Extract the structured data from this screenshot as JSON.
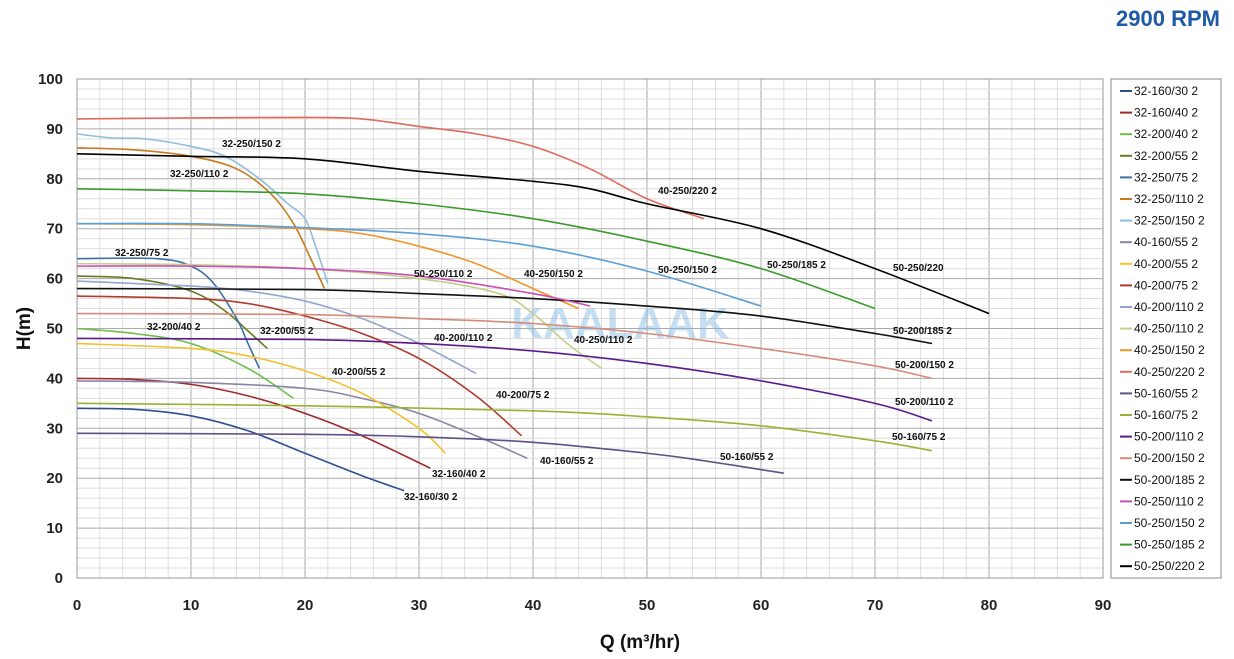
{
  "chart_data": {
    "type": "line",
    "title": "2900 RPM",
    "xlabel": "Q (m³/hr)",
    "ylabel": "H(m)",
    "xlim": [
      0,
      90
    ],
    "ylim": [
      0,
      100
    ],
    "xticks": [
      0,
      10,
      20,
      30,
      40,
      50,
      60,
      70,
      80,
      90
    ],
    "yticks": [
      0,
      10,
      20,
      30,
      40,
      50,
      60,
      70,
      80,
      90,
      100
    ],
    "grid": true,
    "legend": "right",
    "watermark": "KAALAAK",
    "series": [
      {
        "name": "32-160/30 2",
        "color": "#2f4f8f",
        "points": [
          [
            0,
            34
          ],
          [
            5,
            33.8
          ],
          [
            10,
            32.5
          ],
          [
            15,
            29.5
          ],
          [
            20,
            25
          ],
          [
            25,
            20.5
          ],
          [
            28.7,
            17.5
          ]
        ]
      },
      {
        "name": "32-160/40 2",
        "color": "#a0282c",
        "points": [
          [
            0,
            40
          ],
          [
            5,
            39.8
          ],
          [
            10,
            38.8
          ],
          [
            15,
            36.5
          ],
          [
            20,
            33
          ],
          [
            25,
            28.5
          ],
          [
            31,
            22
          ]
        ]
      },
      {
        "name": "32-200/40 2",
        "color": "#6cc04a",
        "points": [
          [
            0,
            50
          ],
          [
            5,
            49
          ],
          [
            10,
            47
          ],
          [
            15,
            42
          ],
          [
            19,
            36
          ]
        ]
      },
      {
        "name": "32-200/55 2",
        "color": "#6b7a22",
        "points": [
          [
            0,
            60.5
          ],
          [
            5,
            60
          ],
          [
            10,
            57.5
          ],
          [
            13,
            53.5
          ],
          [
            15,
            49.5
          ],
          [
            16.7,
            46
          ]
        ]
      },
      {
        "name": "32-250/75 2",
        "color": "#3a6ea5",
        "points": [
          [
            0,
            64
          ],
          [
            7,
            64
          ],
          [
            10,
            62.5
          ],
          [
            12,
            59
          ],
          [
            14,
            52
          ],
          [
            15,
            47
          ],
          [
            16,
            42
          ]
        ]
      },
      {
        "name": "32-250/110 2",
        "color": "#c77a1e",
        "points": [
          [
            0,
            86.2
          ],
          [
            5,
            85.8
          ],
          [
            10,
            84.5
          ],
          [
            14,
            82
          ],
          [
            17,
            77
          ],
          [
            19,
            71
          ],
          [
            20.5,
            64
          ],
          [
            21.7,
            58
          ]
        ]
      },
      {
        "name": "32-250/150 2",
        "color": "#8fbcdc",
        "points": [
          [
            0,
            89
          ],
          [
            3,
            88.2
          ],
          [
            6,
            88
          ],
          [
            10,
            86.5
          ],
          [
            13,
            84.5
          ],
          [
            16,
            80
          ],
          [
            18.5,
            75
          ],
          [
            20,
            72
          ],
          [
            21,
            66
          ],
          [
            22,
            59
          ]
        ]
      },
      {
        "name": "40-160/55 2",
        "color": "#8a84a8",
        "points": [
          [
            0,
            39.5
          ],
          [
            10,
            39.2
          ],
          [
            20,
            38
          ],
          [
            25,
            36
          ],
          [
            30,
            33
          ],
          [
            35,
            28.5
          ],
          [
            39.5,
            24
          ]
        ]
      },
      {
        "name": "40-200/55 2",
        "color": "#f2c12e",
        "points": [
          [
            0,
            47
          ],
          [
            10,
            46
          ],
          [
            15,
            44.5
          ],
          [
            20,
            41.5
          ],
          [
            25,
            37
          ],
          [
            30,
            30
          ],
          [
            32.3,
            25
          ]
        ]
      },
      {
        "name": "40-200/75 2",
        "color": "#b03a2e",
        "points": [
          [
            0,
            56.5
          ],
          [
            10,
            56
          ],
          [
            15,
            55
          ],
          [
            20,
            52.5
          ],
          [
            25,
            49
          ],
          [
            30,
            44
          ],
          [
            35,
            36.5
          ],
          [
            39,
            28.5
          ]
        ]
      },
      {
        "name": "40-200/110 2",
        "color": "#93a6cf",
        "points": [
          [
            0,
            59.5
          ],
          [
            10,
            58.5
          ],
          [
            15,
            57.5
          ],
          [
            20,
            55.5
          ],
          [
            25,
            52
          ],
          [
            30,
            47
          ],
          [
            35,
            41
          ]
        ]
      },
      {
        "name": "40-250/110 2",
        "color": "#c3cf8a",
        "points": [
          [
            0,
            63
          ],
          [
            10,
            62.8
          ],
          [
            20,
            62
          ],
          [
            30,
            60
          ],
          [
            37,
            57
          ],
          [
            40,
            53
          ],
          [
            43,
            47
          ],
          [
            46,
            42
          ]
        ]
      },
      {
        "name": "40-250/150 2",
        "color": "#f0962a",
        "points": [
          [
            0,
            71
          ],
          [
            10,
            70.8
          ],
          [
            20,
            70
          ],
          [
            25,
            69
          ],
          [
            30,
            66.5
          ],
          [
            35,
            63
          ],
          [
            40,
            58
          ],
          [
            44,
            54
          ]
        ]
      },
      {
        "name": "40-250/220 2",
        "color": "#e06a5e",
        "points": [
          [
            0,
            92
          ],
          [
            10,
            92.2
          ],
          [
            20,
            92.3
          ],
          [
            25,
            92
          ],
          [
            30,
            90.5
          ],
          [
            35,
            89
          ],
          [
            40,
            86.5
          ],
          [
            45,
            82
          ],
          [
            50,
            76
          ],
          [
            55,
            72
          ]
        ]
      },
      {
        "name": "50-160/55 2",
        "color": "#5e4f86",
        "points": [
          [
            0,
            29
          ],
          [
            20,
            28.8
          ],
          [
            30,
            28.3
          ],
          [
            40,
            27.2
          ],
          [
            50,
            25
          ],
          [
            55,
            23.5
          ],
          [
            62,
            21
          ]
        ]
      },
      {
        "name": "50-160/75 2",
        "color": "#98b233",
        "points": [
          [
            0,
            35
          ],
          [
            20,
            34.5
          ],
          [
            40,
            33.5
          ],
          [
            50,
            32.3
          ],
          [
            60,
            30.5
          ],
          [
            70,
            27.5
          ],
          [
            75,
            25.5
          ]
        ]
      },
      {
        "name": "50-200/110 2",
        "color": "#5b1a8c",
        "points": [
          [
            0,
            48
          ],
          [
            20,
            47.8
          ],
          [
            30,
            47
          ],
          [
            40,
            45.5
          ],
          [
            50,
            43
          ],
          [
            60,
            39.5
          ],
          [
            70,
            35
          ],
          [
            75,
            31.5
          ]
        ]
      },
      {
        "name": "50-200/150 2",
        "color": "#d68a7a",
        "points": [
          [
            0,
            53
          ],
          [
            20,
            52.8
          ],
          [
            30,
            52
          ],
          [
            40,
            51
          ],
          [
            50,
            49
          ],
          [
            60,
            46
          ],
          [
            70,
            42.5
          ],
          [
            75,
            40
          ]
        ]
      },
      {
        "name": "50-200/185 2",
        "color": "#111111",
        "points": [
          [
            0,
            58
          ],
          [
            20,
            57.8
          ],
          [
            30,
            57
          ],
          [
            40,
            56
          ],
          [
            50,
            54.5
          ],
          [
            60,
            52.5
          ],
          [
            70,
            49
          ],
          [
            75,
            47
          ]
        ]
      },
      {
        "name": "50-250/110 2",
        "color": "#c84fb4",
        "points": [
          [
            0,
            62.5
          ],
          [
            10,
            62.5
          ],
          [
            20,
            62
          ],
          [
            30,
            60.5
          ],
          [
            40,
            57
          ],
          [
            45,
            54.5
          ]
        ]
      },
      {
        "name": "50-250/150 2",
        "color": "#5a9fd6",
        "points": [
          [
            0,
            71
          ],
          [
            10,
            71
          ],
          [
            20,
            70.2
          ],
          [
            30,
            69
          ],
          [
            40,
            66.5
          ],
          [
            50,
            61.5
          ],
          [
            60,
            54.5
          ]
        ]
      },
      {
        "name": "50-250/185 2",
        "color": "#3a9a2a",
        "points": [
          [
            0,
            78
          ],
          [
            10,
            77.6
          ],
          [
            20,
            77
          ],
          [
            30,
            75
          ],
          [
            40,
            72
          ],
          [
            50,
            67.5
          ],
          [
            60,
            62
          ],
          [
            70,
            54
          ]
        ]
      },
      {
        "name": "50-250/220 2",
        "color": "#000000",
        "points": [
          [
            0,
            85
          ],
          [
            10,
            84.5
          ],
          [
            20,
            84
          ],
          [
            30,
            81.5
          ],
          [
            40,
            79.5
          ],
          [
            45,
            78
          ],
          [
            50,
            75
          ],
          [
            60,
            70
          ],
          [
            70,
            62
          ],
          [
            80,
            53
          ]
        ]
      }
    ],
    "annotations": [
      {
        "text": "32-250/150 2",
        "series": 6
      },
      {
        "text": "32-250/110 2",
        "series": 5
      },
      {
        "text": "32-250/75 2",
        "series": 4
      },
      {
        "text": "32-200/40 2",
        "series": 2
      },
      {
        "text": "32-200/55 2",
        "series": 3
      },
      {
        "text": "40-200/55 2",
        "series": 8
      },
      {
        "text": "40-200/110 2",
        "series": 10
      },
      {
        "text": "40-200/75 2",
        "series": 9
      },
      {
        "text": "32-160/40 2",
        "series": 1
      },
      {
        "text": "32-160/30 2",
        "series": 0
      },
      {
        "text": "40-160/55 2",
        "series": 7
      },
      {
        "text": "50-250/110 2",
        "series": 19
      },
      {
        "text": "40-250/150 2",
        "series": 12
      },
      {
        "text": "40-250/110 2",
        "series": 11
      },
      {
        "text": "40-250/220 2",
        "series": 13
      },
      {
        "text": "50-250/150 2",
        "series": 20
      },
      {
        "text": "50-250/185 2",
        "series": 21
      },
      {
        "text": "50-250/220",
        "series": 22
      },
      {
        "text": "50-200/185 2",
        "series": 18
      },
      {
        "text": "50-200/150 2",
        "series": 17
      },
      {
        "text": "50-200/110 2",
        "series": 16
      },
      {
        "text": "50-160/75 2",
        "series": 15
      },
      {
        "text": "50-160/55 2",
        "series": 14
      }
    ]
  }
}
